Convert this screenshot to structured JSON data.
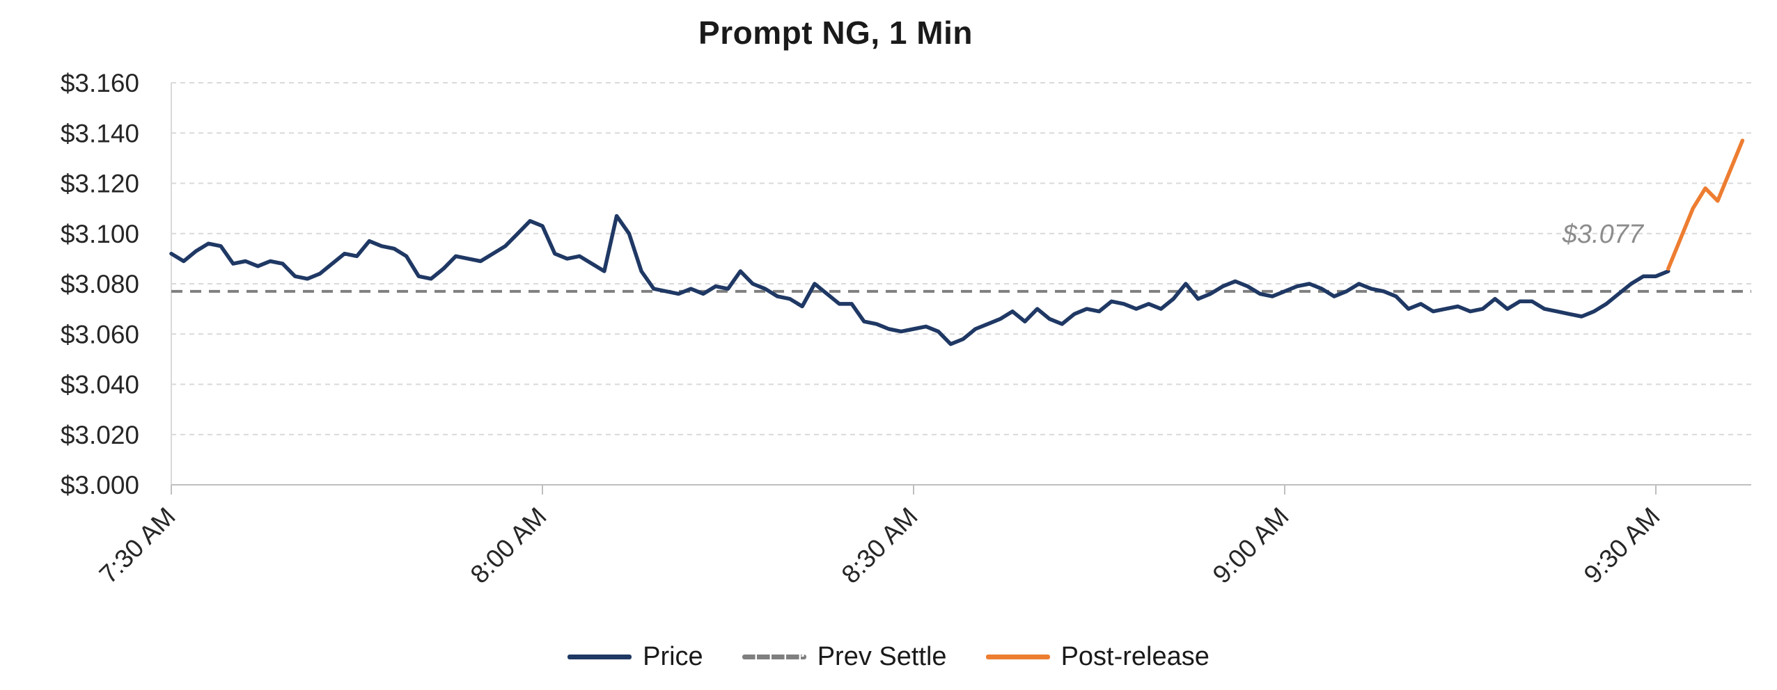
{
  "title": "Prompt NG, 1 Min",
  "annotation": {
    "prev_settle_label": "$3.077"
  },
  "legend": [
    {
      "name": "Price",
      "color": "#1F3864",
      "style": "solid"
    },
    {
      "name": "Prev Settle",
      "color": "#7F7F7F",
      "style": "dashed"
    },
    {
      "name": "Post-release",
      "color": "#ED7D31",
      "style": "solid"
    }
  ],
  "colors": {
    "price": "#1F3864",
    "post_release": "#ED7D31",
    "prev_settle": "#7F7F7F",
    "gridline": "#D9D9D9",
    "axis": "#BFBFBF",
    "tick_label": "#262626"
  },
  "chart_data": {
    "type": "line",
    "title": "Prompt NG, 1 Min",
    "xlabel": "",
    "ylabel": "",
    "ylim": [
      3.0,
      3.16
    ],
    "y_ticks": [
      {
        "label": "$3.000",
        "value": 3.0
      },
      {
        "label": "$3.020",
        "value": 3.02
      },
      {
        "label": "$3.040",
        "value": 3.04
      },
      {
        "label": "$3.060",
        "value": 3.06
      },
      {
        "label": "$3.080",
        "value": 3.08
      },
      {
        "label": "$3.100",
        "value": 3.1
      },
      {
        "label": "$3.120",
        "value": 3.12
      },
      {
        "label": "$3.140",
        "value": 3.14
      },
      {
        "label": "$3.160",
        "value": 3.16
      }
    ],
    "x_unit": "minutes since 7:30 AM, 1-minute bars",
    "x_ticks": [
      {
        "label": "7:30 AM",
        "minute": 0
      },
      {
        "label": "8:00 AM",
        "minute": 30
      },
      {
        "label": "8:30 AM",
        "minute": 60
      },
      {
        "label": "9:00 AM",
        "minute": 90
      },
      {
        "label": "9:30 AM",
        "minute": 120
      }
    ],
    "prev_settle": 3.077,
    "grid": "horizontal-dashed",
    "legend_position": "bottom",
    "series": [
      {
        "name": "Price",
        "color": "#1F3864",
        "style": "solid",
        "start_minute": 0,
        "values": [
          3.092,
          3.089,
          3.093,
          3.096,
          3.095,
          3.088,
          3.089,
          3.087,
          3.089,
          3.088,
          3.083,
          3.082,
          3.084,
          3.088,
          3.092,
          3.091,
          3.097,
          3.095,
          3.094,
          3.091,
          3.083,
          3.082,
          3.086,
          3.091,
          3.09,
          3.089,
          3.092,
          3.095,
          3.1,
          3.105,
          3.103,
          3.092,
          3.09,
          3.091,
          3.088,
          3.085,
          3.107,
          3.1,
          3.085,
          3.078,
          3.077,
          3.076,
          3.078,
          3.076,
          3.079,
          3.078,
          3.085,
          3.08,
          3.078,
          3.075,
          3.074,
          3.071,
          3.08,
          3.076,
          3.072,
          3.072,
          3.065,
          3.064,
          3.062,
          3.061,
          3.062,
          3.063,
          3.061,
          3.056,
          3.058,
          3.062,
          3.064,
          3.066,
          3.069,
          3.065,
          3.07,
          3.066,
          3.064,
          3.068,
          3.07,
          3.069,
          3.073,
          3.072,
          3.07,
          3.072,
          3.07,
          3.074,
          3.08,
          3.074,
          3.076,
          3.079,
          3.081,
          3.079,
          3.076,
          3.075,
          3.077,
          3.079,
          3.08,
          3.078,
          3.075,
          3.077,
          3.08,
          3.078,
          3.077,
          3.075,
          3.07,
          3.072,
          3.069,
          3.07,
          3.071,
          3.069,
          3.07,
          3.074,
          3.07,
          3.073,
          3.073,
          3.07,
          3.069,
          3.068,
          3.067,
          3.069,
          3.072,
          3.076,
          3.08,
          3.083,
          3.083,
          3.085
        ]
      },
      {
        "name": "Post-release",
        "color": "#ED7D31",
        "style": "solid",
        "start_minute": 121,
        "values": [
          3.086,
          3.098,
          3.11,
          3.118,
          3.113,
          3.125,
          3.137
        ]
      },
      {
        "name": "Prev Settle",
        "color": "#7F7F7F",
        "style": "dashed",
        "value": 3.077
      }
    ]
  }
}
